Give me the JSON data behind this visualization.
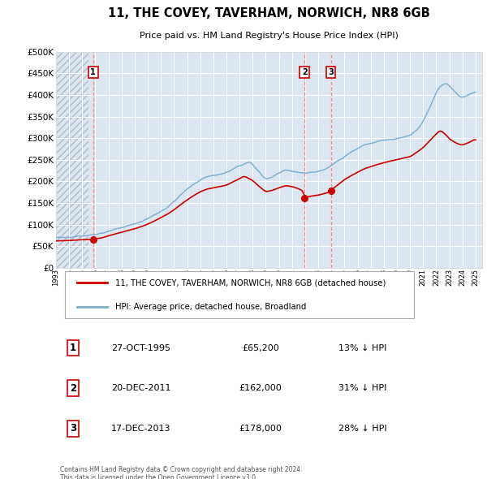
{
  "title": "11, THE COVEY, TAVERHAM, NORWICH, NR8 6GB",
  "subtitle": "Price paid vs. HM Land Registry's House Price Index (HPI)",
  "bg_color": "#ffffff",
  "plot_bg_color": "#dce6f0",
  "grid_color": "#ffffff",
  "red_line_color": "#cc0000",
  "blue_line_color": "#7aadcf",
  "dashed_line_color": "#ff6666",
  "legend_label_red": "11, THE COVEY, TAVERHAM, NORWICH, NR8 6GB (detached house)",
  "legend_label_blue": "HPI: Average price, detached house, Broadland",
  "footer": "Contains HM Land Registry data © Crown copyright and database right 2024.\nThis data is licensed under the Open Government Licence v3.0.",
  "sale_labels": [
    "1",
    "2",
    "3"
  ],
  "sale_dates_str": [
    "27-OCT-1995",
    "20-DEC-2011",
    "17-DEC-2013"
  ],
  "sale_prices_str": [
    "£65,200",
    "£162,000",
    "£178,000"
  ],
  "sale_hpi_str": [
    "13% ↓ HPI",
    "31% ↓ HPI",
    "28% ↓ HPI"
  ],
  "sale_years": [
    1995.83,
    2011.96,
    2013.96
  ],
  "sale_prices": [
    65200,
    162000,
    178000
  ],
  "ylim": [
    0,
    500000
  ],
  "xlim_start": 1993.0,
  "xlim_end": 2025.5
}
